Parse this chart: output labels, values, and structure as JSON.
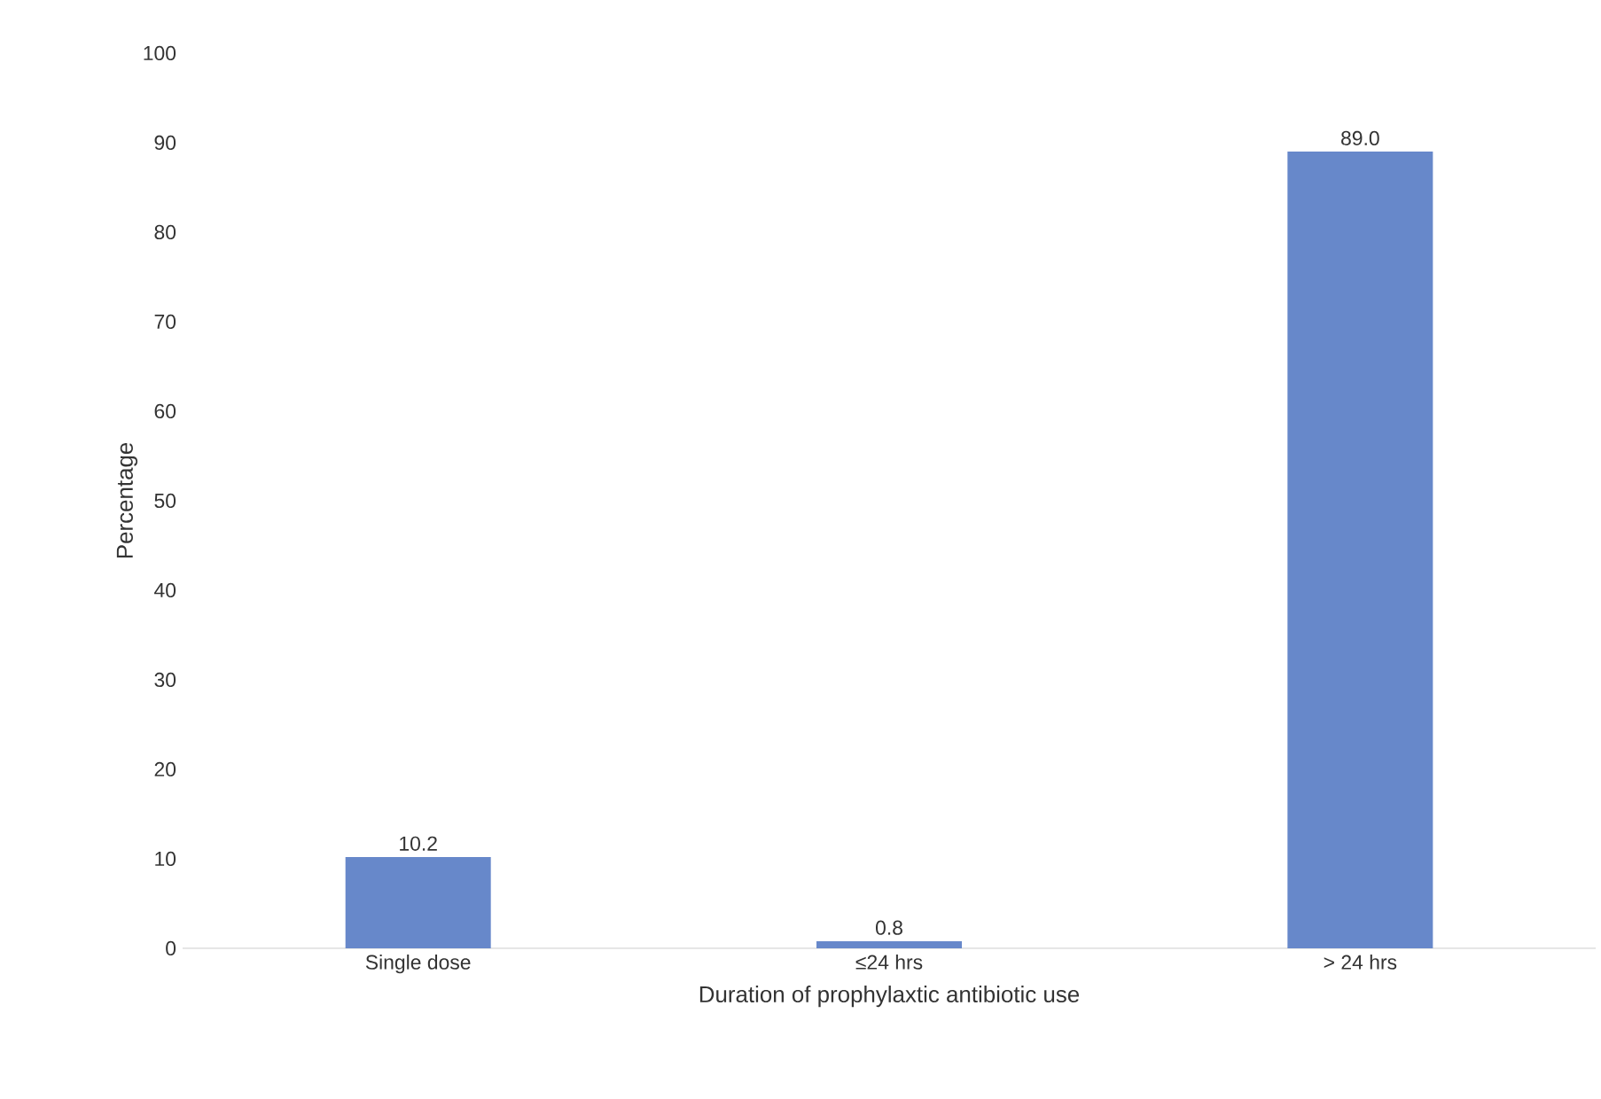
{
  "chart_data": {
    "type": "bar",
    "xlabel": "Duration of prophylaxtic antibiotic use",
    "ylabel": "Percentage",
    "categories": [
      "Single dose",
      "≤24 hrs",
      "> 24 hrs"
    ],
    "values": [
      10.2,
      0.8,
      89.0
    ],
    "value_labels": [
      "10.2",
      "0.8",
      "89.0"
    ],
    "color": "#6788ca",
    "ylim": [
      0,
      100
    ],
    "yticks": [
      0,
      10,
      20,
      30,
      40,
      50,
      60,
      70,
      80,
      90,
      100
    ]
  }
}
